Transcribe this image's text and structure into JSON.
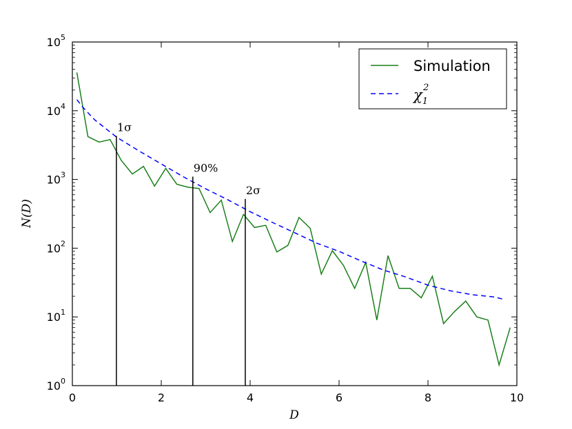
{
  "chart_data": {
    "type": "line",
    "title": "",
    "xlabel": "D",
    "ylabel": "N(D)",
    "xlim": [
      0,
      10
    ],
    "ylim": [
      1,
      100000
    ],
    "yscale": "log",
    "grid": false,
    "legend_position": "top-right",
    "x_ticks": [
      0,
      2,
      4,
      6,
      8,
      10
    ],
    "x_tick_labels": [
      "0",
      "2",
      "4",
      "6",
      "8",
      "10"
    ],
    "y_tick_labels": [
      {
        "base": "10",
        "exp": "0",
        "value": 1
      },
      {
        "base": "10",
        "exp": "1",
        "value": 10
      },
      {
        "base": "10",
        "exp": "2",
        "value": 100
      },
      {
        "base": "10",
        "exp": "3",
        "value": 1000
      },
      {
        "base": "10",
        "exp": "4",
        "value": 10000
      },
      {
        "base": "10",
        "exp": "5",
        "value": 100000
      }
    ],
    "series": [
      {
        "name": "Simulation",
        "color": "#1a7f1a",
        "style": "solid",
        "x": [
          0.1,
          0.35,
          0.6,
          0.85,
          1.1,
          1.35,
          1.6,
          1.85,
          2.1,
          2.35,
          2.6,
          2.85,
          3.1,
          3.35,
          3.6,
          3.85,
          4.1,
          4.35,
          4.6,
          4.85,
          5.1,
          5.35,
          5.6,
          5.85,
          6.1,
          6.35,
          6.6,
          6.85,
          7.1,
          7.35,
          7.6,
          7.85,
          8.1,
          8.35,
          8.6,
          8.85,
          9.1,
          9.35,
          9.6,
          9.85
        ],
        "y": [
          36000,
          4200,
          3500,
          3800,
          1900,
          1200,
          1550,
          800,
          1450,
          850,
          770,
          740,
          330,
          500,
          125,
          310,
          200,
          215,
          88,
          110,
          280,
          195,
          42,
          92,
          56,
          26,
          62,
          9,
          78,
          26,
          26,
          19,
          39,
          8,
          12,
          17,
          10,
          9,
          2,
          7
        ]
      },
      {
        "name": "χ₁²",
        "legend_base": "χ",
        "legend_sub": "1",
        "legend_sup": "2",
        "color": "#0000ff",
        "style": "dashed",
        "x": [
          0.1,
          0.25,
          0.5,
          0.75,
          1.0,
          1.5,
          2.0,
          2.5,
          3.0,
          3.5,
          4.0,
          4.5,
          5.0,
          5.5,
          6.0,
          6.5,
          7.0,
          7.5,
          8.0,
          8.5,
          9.0,
          9.5,
          9.7
        ],
        "y": [
          14500,
          11000,
          7400,
          5500,
          4100,
          2600,
          1680,
          1090,
          730,
          505,
          340,
          237,
          168,
          118,
          90,
          65,
          48,
          38,
          29,
          24,
          21,
          19.5,
          18
        ]
      }
    ],
    "vertical_lines": [
      {
        "x": 0.99,
        "top": 4300,
        "label": "1σ"
      },
      {
        "x": 2.71,
        "top": 1100,
        "label": "90%"
      },
      {
        "x": 3.89,
        "top": 520,
        "label": "2σ"
      }
    ]
  }
}
